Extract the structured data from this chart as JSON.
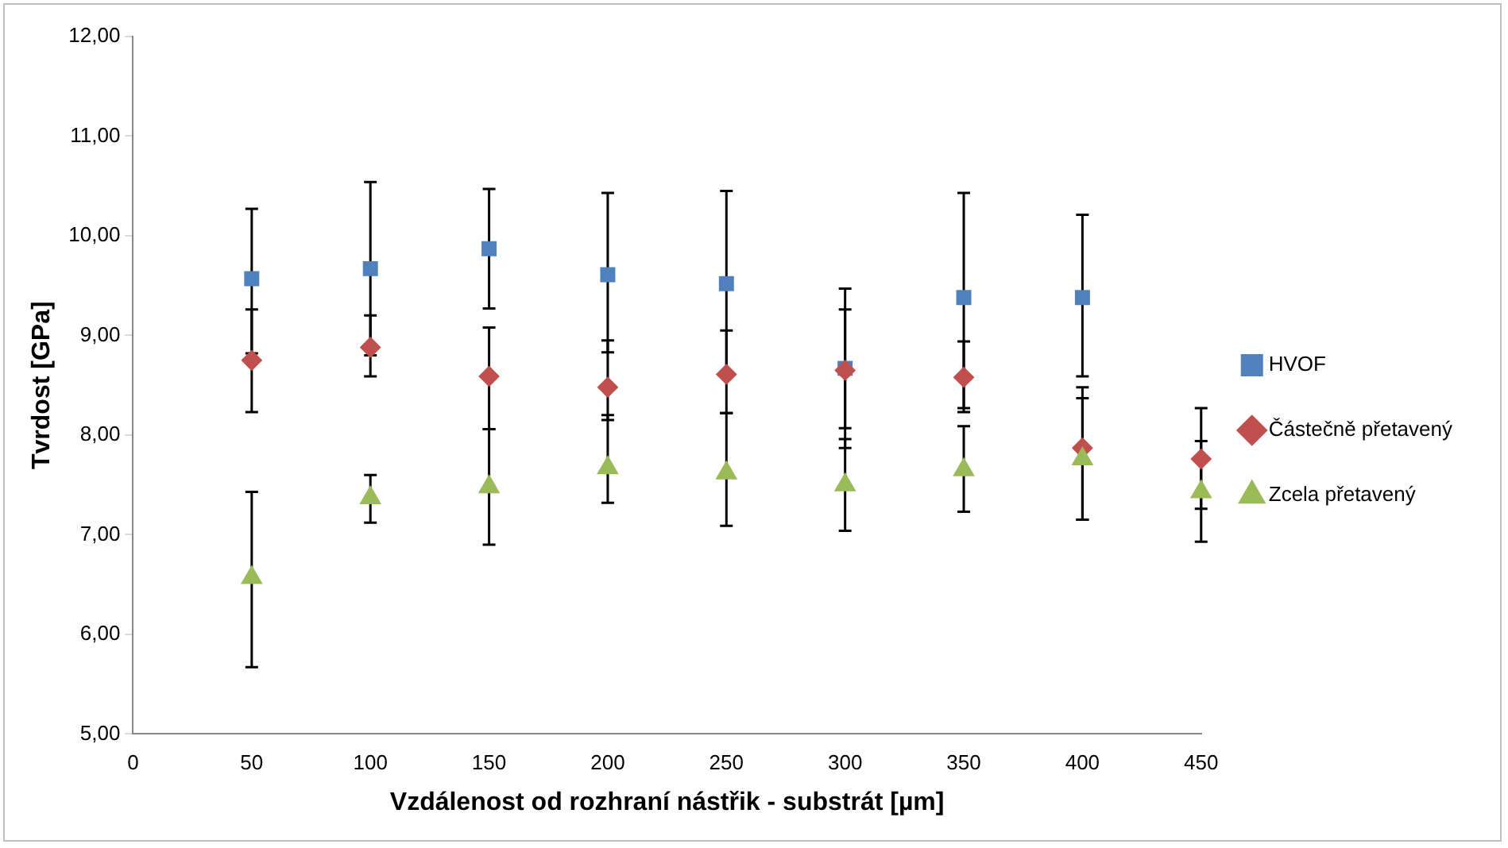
{
  "chart_data": {
    "type": "scatter",
    "xlabel": "Vzdálenost od rozhraní nástřik - substrát [µm]",
    "ylabel": "Tvrdost [GPa]",
    "x": [
      50,
      100,
      150,
      200,
      250,
      300,
      350,
      400,
      450
    ],
    "series": [
      {
        "name": "HVOF",
        "color": "#4f81bd",
        "marker": "square",
        "values": [
          9.57,
          9.67,
          9.87,
          9.61,
          9.52,
          8.67,
          9.38,
          9.38,
          null
        ],
        "errors": [
          [
            8.82,
            10.27
          ],
          [
            8.8,
            10.54
          ],
          [
            9.27,
            10.47
          ],
          [
            8.83,
            10.43
          ],
          [
            8.6,
            10.45
          ],
          [
            7.87,
            9.47
          ],
          [
            8.27,
            10.43
          ],
          [
            8.59,
            10.21
          ],
          null
        ]
      },
      {
        "name": "Částečně přetavený",
        "color": "#c0504d",
        "marker": "diamond",
        "values": [
          8.75,
          8.88,
          8.59,
          8.48,
          8.61,
          8.65,
          8.58,
          7.87,
          7.76
        ],
        "errors": [
          [
            8.23,
            9.26
          ],
          [
            8.59,
            9.2
          ],
          [
            8.06,
            9.08
          ],
          [
            8.15,
            8.95
          ],
          [
            8.22,
            9.05
          ],
          [
            8.07,
            9.26
          ],
          [
            8.23,
            8.94
          ],
          [
            7.15,
            8.48
          ],
          [
            7.26,
            8.27
          ]
        ]
      },
      {
        "name": "Zcela přetavený",
        "color": "#9bbb59",
        "marker": "triangle",
        "values": [
          6.57,
          7.37,
          7.48,
          7.67,
          7.62,
          7.5,
          7.65,
          7.76,
          7.43
        ],
        "errors": [
          [
            5.67,
            7.43
          ],
          [
            7.12,
            7.6
          ],
          [
            6.9,
            8.06
          ],
          [
            7.32,
            8.2
          ],
          [
            7.09,
            8.22
          ],
          [
            7.04,
            7.96
          ],
          [
            7.23,
            8.09
          ],
          [
            7.15,
            8.37
          ],
          [
            6.93,
            7.94
          ]
        ]
      }
    ],
    "xlim": [
      0,
      450
    ],
    "xticks": [
      0,
      50,
      100,
      150,
      200,
      250,
      300,
      350,
      400,
      450
    ],
    "ylim": [
      5,
      12
    ],
    "yticks": [
      {
        "value": 5,
        "label": "5,00"
      },
      {
        "value": 6,
        "label": "6,00"
      },
      {
        "value": 7,
        "label": "7,00"
      },
      {
        "value": 8,
        "label": "8,00"
      },
      {
        "value": 9,
        "label": "9,00"
      },
      {
        "value": 10,
        "label": "10,00"
      },
      {
        "value": 11,
        "label": "11,00"
      },
      {
        "value": 12,
        "label": "12,00"
      }
    ],
    "grid": false,
    "legend": "right"
  }
}
